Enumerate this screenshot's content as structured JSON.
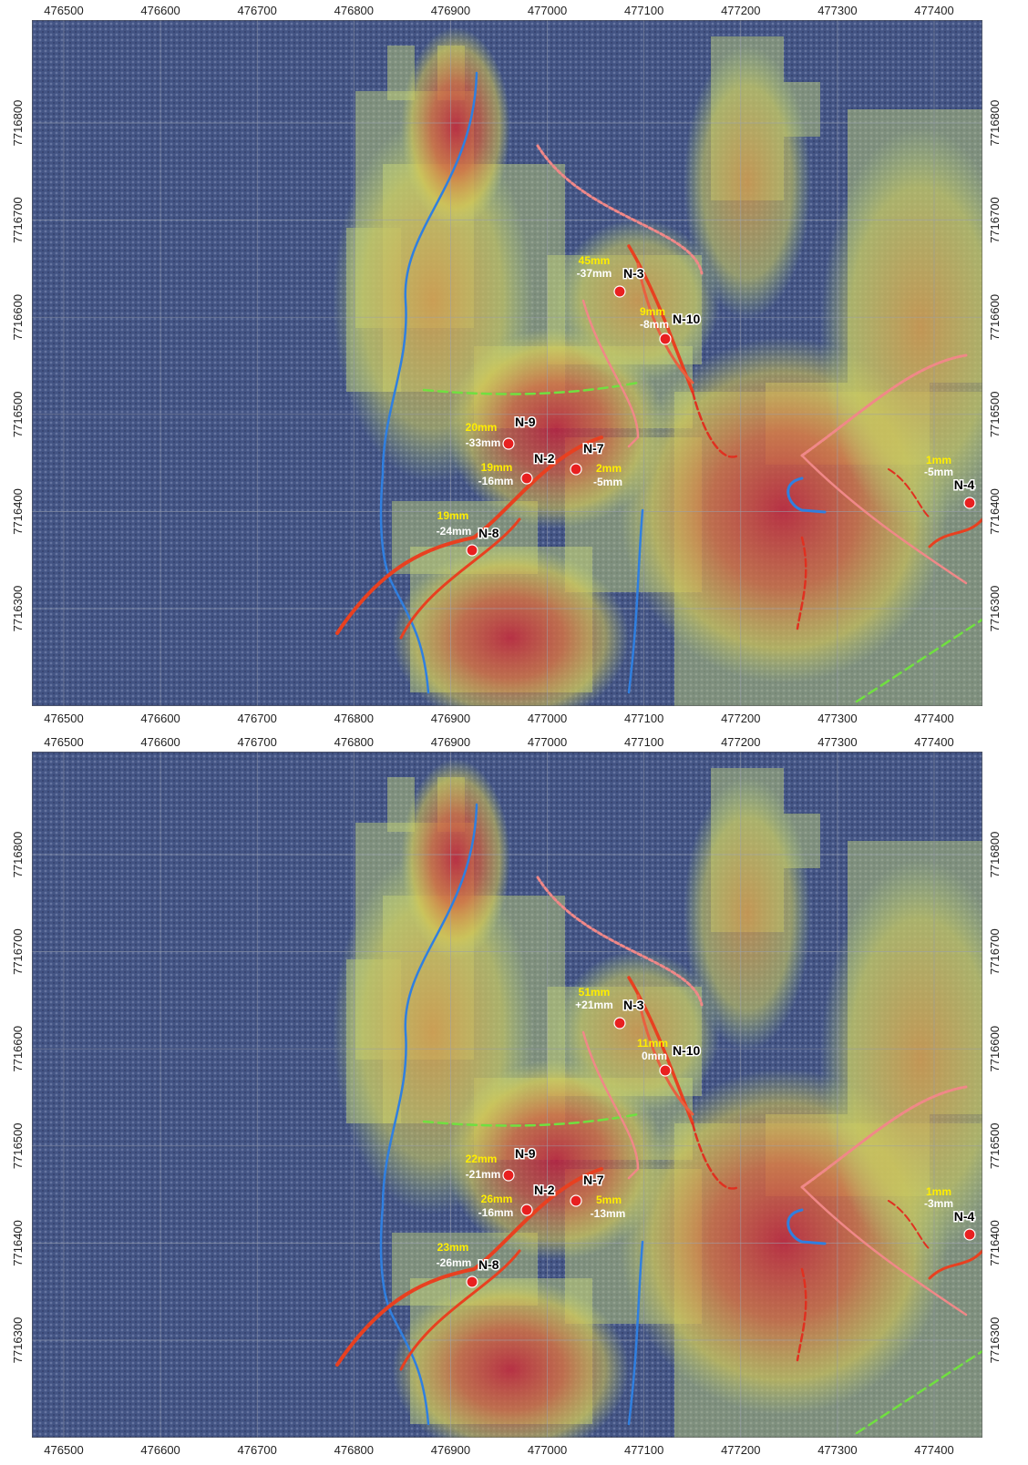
{
  "x_ticks": [
    476500,
    476600,
    476700,
    476800,
    476900,
    477000,
    477100,
    477200,
    477300,
    477400
  ],
  "y_ticks": [
    7716800,
    7716700,
    7716600,
    7716500,
    7716400,
    7716300
  ],
  "panels": [
    {
      "points": [
        {
          "name": "N-3",
          "upper": "45mm",
          "lower": "-37mm"
        },
        {
          "name": "N-10",
          "upper": "9mm",
          "lower": "-8mm"
        },
        {
          "name": "N-9",
          "upper": "20mm",
          "lower": "-33mm"
        },
        {
          "name": "N-2",
          "upper": "19mm",
          "lower": "-16mm"
        },
        {
          "name": "N-7",
          "upper": "2mm",
          "lower": "-5mm"
        },
        {
          "name": "N-8",
          "upper": "19mm",
          "lower": "-24mm"
        },
        {
          "name": "N-4",
          "upper": "1mm",
          "lower": "-5mm"
        }
      ]
    },
    {
      "points": [
        {
          "name": "N-3",
          "upper": "51mm",
          "lower": "+21mm"
        },
        {
          "name": "N-10",
          "upper": "11mm",
          "lower": "0mm"
        },
        {
          "name": "N-9",
          "upper": "22mm",
          "lower": "-21mm"
        },
        {
          "name": "N-2",
          "upper": "26mm",
          "lower": "-16mm"
        },
        {
          "name": "N-7",
          "upper": "5mm",
          "lower": "-13mm"
        },
        {
          "name": "N-8",
          "upper": "23mm",
          "lower": "-26mm"
        },
        {
          "name": "N-4",
          "upper": "1mm",
          "lower": "-3mm"
        }
      ]
    }
  ]
}
